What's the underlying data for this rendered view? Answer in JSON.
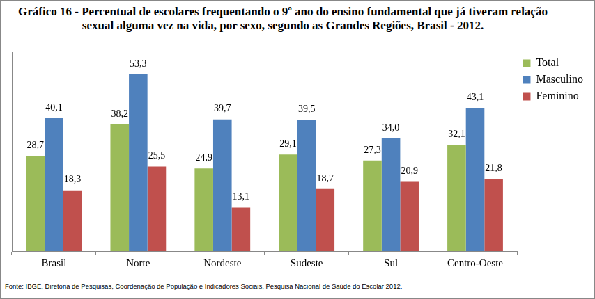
{
  "chart_data": {
    "type": "bar",
    "title": "Gráfico 16 - Percentual de escolares frequentando o 9º ano do ensino fundamental que já tiveram relação sexual alguma vez na vida, por sexo, segundo as Grandes Regiões, Brasil - 2012.",
    "note": "Fonte: IBGE, Diretoria de Pesquisas, Coordenação de População e Indicadores Sociais, Pesquisa Nacional de Saúde do Escolar 2012.",
    "categories": [
      "Brasil",
      "Norte",
      "Nordeste",
      "Sudeste",
      "Sul",
      "Centro-Oeste"
    ],
    "series": [
      {
        "name": "Total",
        "color": "#9bbb59",
        "values": [
          28.7,
          38.2,
          24.9,
          29.1,
          27.3,
          32.1
        ],
        "value_labels": [
          "28,7",
          "38,2",
          "24,9",
          "29,1",
          "27,3",
          "32,1"
        ]
      },
      {
        "name": "Masculino",
        "color": "#4f81bd",
        "values": [
          40.1,
          53.3,
          39.7,
          39.5,
          34.0,
          43.1
        ],
        "value_labels": [
          "40,1",
          "53,3",
          "39,7",
          "39,5",
          "34,0",
          "43,1"
        ]
      },
      {
        "name": "Feminino",
        "color": "#c0504d",
        "values": [
          18.3,
          25.5,
          13.1,
          18.7,
          20.9,
          21.8
        ],
        "value_labels": [
          "18,3",
          "25,5",
          "13,1",
          "18,7",
          "20,9",
          "21,8"
        ]
      }
    ],
    "ylim": [
      0,
      60
    ],
    "grid": false,
    "legend": "right",
    "data_labels": true,
    "tick_labels": "x"
  }
}
